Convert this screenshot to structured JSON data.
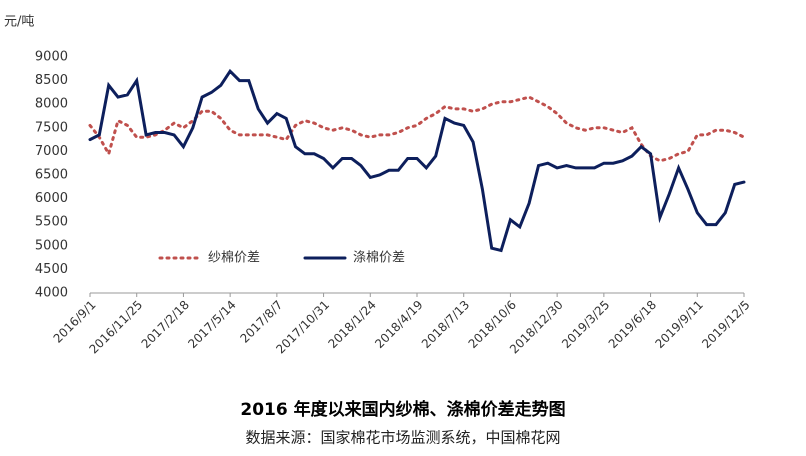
{
  "chart_data": {
    "type": "line",
    "title": "2016 年度以来国内纱棉、涤棉价差走势图",
    "subtitle": "数据来源：国家棉花市场监测系统，中国棉花网",
    "y_label": "元/吨",
    "categories": [
      "2016/9/1",
      null,
      null,
      null,
      null,
      "2016/11/25",
      null,
      null,
      null,
      null,
      "2017/2/18",
      null,
      null,
      null,
      null,
      "2017/5/14",
      null,
      null,
      null,
      null,
      "2017/8/7",
      null,
      null,
      null,
      null,
      "2017/10/31",
      null,
      null,
      null,
      null,
      "2018/1/24",
      null,
      null,
      null,
      null,
      "2018/4/19",
      null,
      null,
      null,
      null,
      "2018/7/13",
      null,
      null,
      null,
      null,
      "2018/10/6",
      null,
      null,
      null,
      null,
      "2018/12/30",
      null,
      null,
      null,
      null,
      "2019/3/25",
      null,
      null,
      null,
      null,
      "2019/6/18",
      null,
      null,
      null,
      null,
      "2019/9/11",
      null,
      null,
      null,
      null,
      "2019/12/5"
    ],
    "series": [
      {
        "name": "纱棉价差",
        "color": "#c0504d",
        "dashed": true,
        "values": [
          7550,
          7300,
          6950,
          7650,
          7550,
          7300,
          7300,
          7350,
          7450,
          7600,
          7500,
          7650,
          7850,
          7850,
          7700,
          7450,
          7350,
          7350,
          7350,
          7350,
          7300,
          7250,
          7550,
          7650,
          7600,
          7500,
          7450,
          7500,
          7450,
          7350,
          7300,
          7350,
          7350,
          7400,
          7500,
          7550,
          7700,
          7800,
          7950,
          7900,
          7900,
          7850,
          7900,
          8000,
          8050,
          8050,
          8100,
          8150,
          8050,
          7950,
          7800,
          7600,
          7500,
          7450,
          7500,
          7500,
          7450,
          7400,
          7500,
          7150,
          6900,
          6800,
          6850,
          6950,
          7000,
          7350,
          7350,
          7450,
          7450,
          7400,
          7300
        ]
      },
      {
        "name": "涤棉价差",
        "color": "#0d1f5c",
        "dashed": false,
        "values": [
          7250,
          7350,
          8400,
          8150,
          8200,
          8500,
          7350,
          7400,
          7400,
          7350,
          7100,
          7500,
          8150,
          8250,
          8400,
          8700,
          8500,
          8500,
          7900,
          7600,
          7800,
          7700,
          7100,
          6950,
          6950,
          6850,
          6650,
          6850,
          6850,
          6700,
          6450,
          6500,
          6600,
          6600,
          6850,
          6850,
          6650,
          6900,
          7700,
          7600,
          7550,
          7200,
          6200,
          4950,
          4900,
          5550,
          5400,
          5900,
          6700,
          6750,
          6650,
          6700,
          6650,
          6650,
          6650,
          6750,
          6750,
          6800,
          6900,
          7100,
          6950,
          5600,
          6100,
          6650,
          6200,
          5700,
          5450,
          5450,
          5700,
          6300,
          6350
        ]
      }
    ],
    "ylim": [
      4000,
      9000
    ],
    "yticks": [
      4000,
      4500,
      5000,
      5500,
      6000,
      6500,
      7000,
      7500,
      8000,
      8500,
      9000
    ],
    "grid": false
  }
}
